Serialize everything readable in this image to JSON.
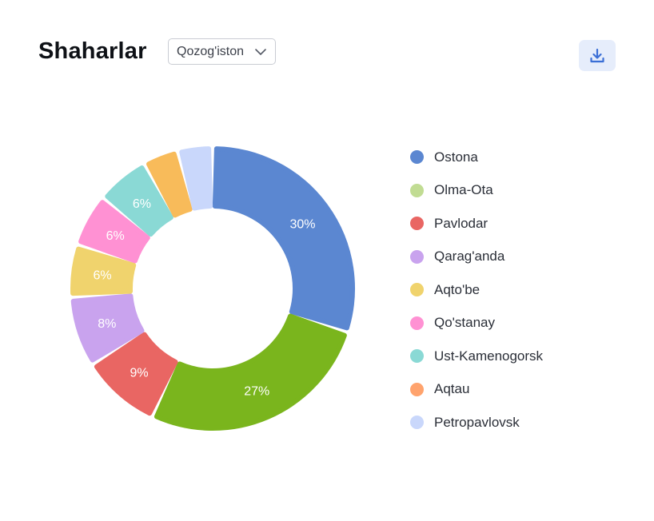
{
  "header": {
    "title": "Shaharlar",
    "country_select": {
      "value": "Qozog'iston",
      "icon": "chevron-down-icon"
    },
    "download_icon": "download-icon"
  },
  "colors": {
    "accent": "#3b6fd6",
    "button_bg": "#e6edfb"
  },
  "chart_data": {
    "type": "pie",
    "variant": "donut",
    "title": "",
    "legend_position": "right",
    "categories": [
      "Ostona",
      "Olma-Ota",
      "Pavlodar",
      "Qarag'anda",
      "Aqto'be",
      "Qo'stanay",
      "Ust-Kamenogorsk",
      "Aqtau",
      "Petropavlovsk"
    ],
    "values": [
      30,
      27,
      9,
      8,
      6,
      6,
      6,
      4,
      4
    ],
    "labels": [
      "30%",
      "27%",
      "9%",
      "8%",
      "6%",
      "6%",
      "6%",
      "",
      ""
    ],
    "colors": [
      "#5b87d1",
      "#7ab51d",
      "#e96663",
      "#c9a3ee",
      "#f0d36d",
      "#ff91d3",
      "#8ad9d5",
      "#f8bb5a",
      "#c9d7fb"
    ],
    "legend_colors": [
      "#5b87d1",
      "#c1dc93",
      "#e96663",
      "#c9a3ee",
      "#f0d36d",
      "#ff91d3",
      "#8ad9d5",
      "#ffa36d",
      "#c9d7fb"
    ]
  }
}
